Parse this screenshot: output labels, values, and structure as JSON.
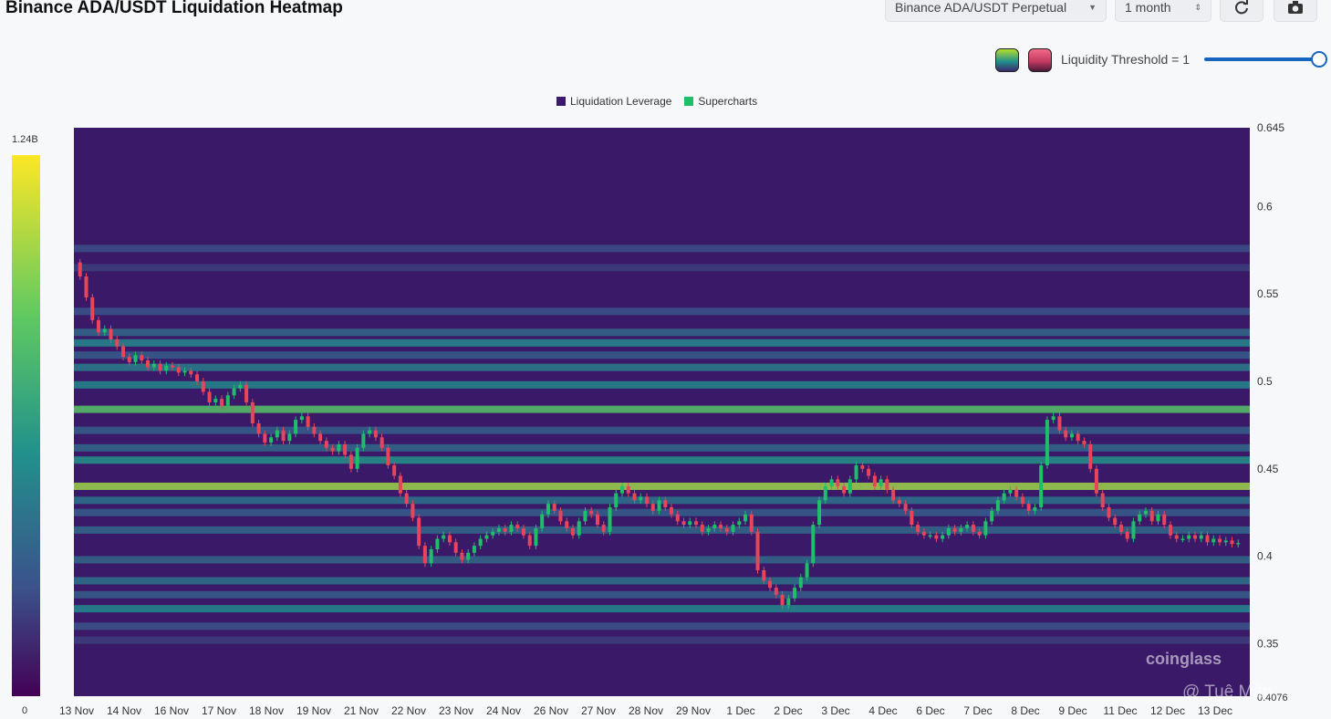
{
  "header": {
    "title": "Binance ADA/USDT Liquidation Heatmap",
    "pair_select": "Binance ADA/USDT Perpetual",
    "range_select": "1 month",
    "refresh_icon": "refresh-icon",
    "camera_icon": "camera-icon"
  },
  "controls": {
    "threshold_label": "Liquidity Threshold = 1",
    "threshold_value": 1,
    "palette_icons": [
      "viridis-palette",
      "rose-palette"
    ]
  },
  "legend": {
    "items": [
      {
        "label": "Liquidation Leverage",
        "color": "#3b1a6b"
      },
      {
        "label": "Supercharts",
        "color": "#1fbf6a"
      }
    ]
  },
  "colorbar": {
    "max_label": "1.24B",
    "min_label": "0"
  },
  "watermark": {
    "logo": "coinglass",
    "user": "@ Tuệ Mẫn"
  },
  "chart_data": {
    "type": "heatmap",
    "title": "Binance ADA/USDT Liquidation Heatmap",
    "x_ticks": [
      "13 Nov",
      "14 Nov",
      "16 Nov",
      "17 Nov",
      "18 Nov",
      "19 Nov",
      "21 Nov",
      "22 Nov",
      "23 Nov",
      "24 Nov",
      "26 Nov",
      "27 Nov",
      "28 Nov",
      "29 Nov",
      "1 Dec",
      "2 Dec",
      "3 Dec",
      "4 Dec",
      "6 Dec",
      "7 Dec",
      "8 Dec",
      "9 Dec",
      "11 Dec",
      "12 Dec",
      "13 Dec"
    ],
    "y_ticks": [
      0.645,
      0.6,
      0.55,
      0.5,
      0.45,
      0.4,
      0.35
    ],
    "y_tick_labels": [
      "0.645",
      "0.6",
      "0.55",
      "0.5",
      "0.45",
      "0.4",
      "0.35"
    ],
    "current_price_label": "0.4076",
    "ylim": [
      0.32,
      0.645
    ],
    "colorscale": "viridis",
    "colorbar_range": [
      "0",
      "1.24B"
    ],
    "liquidation_bands": [
      {
        "price": 0.576,
        "intensity": 0.28
      },
      {
        "price": 0.565,
        "intensity": 0.22
      },
      {
        "price": 0.54,
        "intensity": 0.3
      },
      {
        "price": 0.528,
        "intensity": 0.4
      },
      {
        "price": 0.522,
        "intensity": 0.55
      },
      {
        "price": 0.515,
        "intensity": 0.35
      },
      {
        "price": 0.508,
        "intensity": 0.5
      },
      {
        "price": 0.498,
        "intensity": 0.55
      },
      {
        "price": 0.484,
        "intensity": 0.85
      },
      {
        "price": 0.472,
        "intensity": 0.35
      },
      {
        "price": 0.462,
        "intensity": 0.4
      },
      {
        "price": 0.455,
        "intensity": 0.6
      },
      {
        "price": 0.44,
        "intensity": 1.0
      },
      {
        "price": 0.432,
        "intensity": 0.45
      },
      {
        "price": 0.425,
        "intensity": 0.35
      },
      {
        "price": 0.415,
        "intensity": 0.4
      },
      {
        "price": 0.398,
        "intensity": 0.4
      },
      {
        "price": 0.386,
        "intensity": 0.45
      },
      {
        "price": 0.378,
        "intensity": 0.35
      },
      {
        "price": 0.37,
        "intensity": 0.55
      },
      {
        "price": 0.36,
        "intensity": 0.3
      },
      {
        "price": 0.352,
        "intensity": 0.22
      }
    ],
    "price_series": [
      0.568,
      0.56,
      0.548,
      0.535,
      0.528,
      0.53,
      0.524,
      0.52,
      0.514,
      0.511,
      0.515,
      0.512,
      0.508,
      0.51,
      0.506,
      0.509,
      0.508,
      0.505,
      0.506,
      0.504,
      0.5,
      0.494,
      0.488,
      0.49,
      0.486,
      0.492,
      0.496,
      0.498,
      0.488,
      0.476,
      0.47,
      0.465,
      0.468,
      0.472,
      0.466,
      0.47,
      0.478,
      0.48,
      0.474,
      0.47,
      0.466,
      0.462,
      0.46,
      0.464,
      0.458,
      0.45,
      0.462,
      0.47,
      0.472,
      0.468,
      0.462,
      0.452,
      0.446,
      0.436,
      0.43,
      0.422,
      0.406,
      0.396,
      0.404,
      0.41,
      0.412,
      0.408,
      0.402,
      0.398,
      0.402,
      0.406,
      0.41,
      0.412,
      0.414,
      0.416,
      0.414,
      0.418,
      0.416,
      0.412,
      0.406,
      0.416,
      0.424,
      0.43,
      0.426,
      0.42,
      0.416,
      0.412,
      0.42,
      0.426,
      0.424,
      0.418,
      0.414,
      0.428,
      0.436,
      0.44,
      0.436,
      0.432,
      0.434,
      0.43,
      0.426,
      0.432,
      0.428,
      0.424,
      0.42,
      0.418,
      0.42,
      0.418,
      0.414,
      0.416,
      0.418,
      0.416,
      0.414,
      0.418,
      0.42,
      0.424,
      0.414,
      0.392,
      0.386,
      0.382,
      0.378,
      0.372,
      0.376,
      0.382,
      0.388,
      0.396,
      0.418,
      0.432,
      0.44,
      0.444,
      0.44,
      0.436,
      0.444,
      0.452,
      0.45,
      0.446,
      0.44,
      0.444,
      0.438,
      0.432,
      0.43,
      0.426,
      0.418,
      0.414,
      0.412,
      0.412,
      0.41,
      0.412,
      0.416,
      0.414,
      0.416,
      0.418,
      0.414,
      0.412,
      0.42,
      0.426,
      0.432,
      0.436,
      0.438,
      0.434,
      0.43,
      0.426,
      0.428,
      0.452,
      0.478,
      0.48,
      0.472,
      0.468,
      0.47,
      0.466,
      0.464,
      0.45,
      0.436,
      0.428,
      0.422,
      0.418,
      0.414,
      0.41,
      0.42,
      0.424,
      0.426,
      0.42,
      0.424,
      0.418,
      0.412,
      0.41,
      0.41,
      0.412,
      0.41,
      0.412,
      0.408,
      0.41,
      0.408,
      0.409,
      0.407,
      0.4076
    ]
  }
}
